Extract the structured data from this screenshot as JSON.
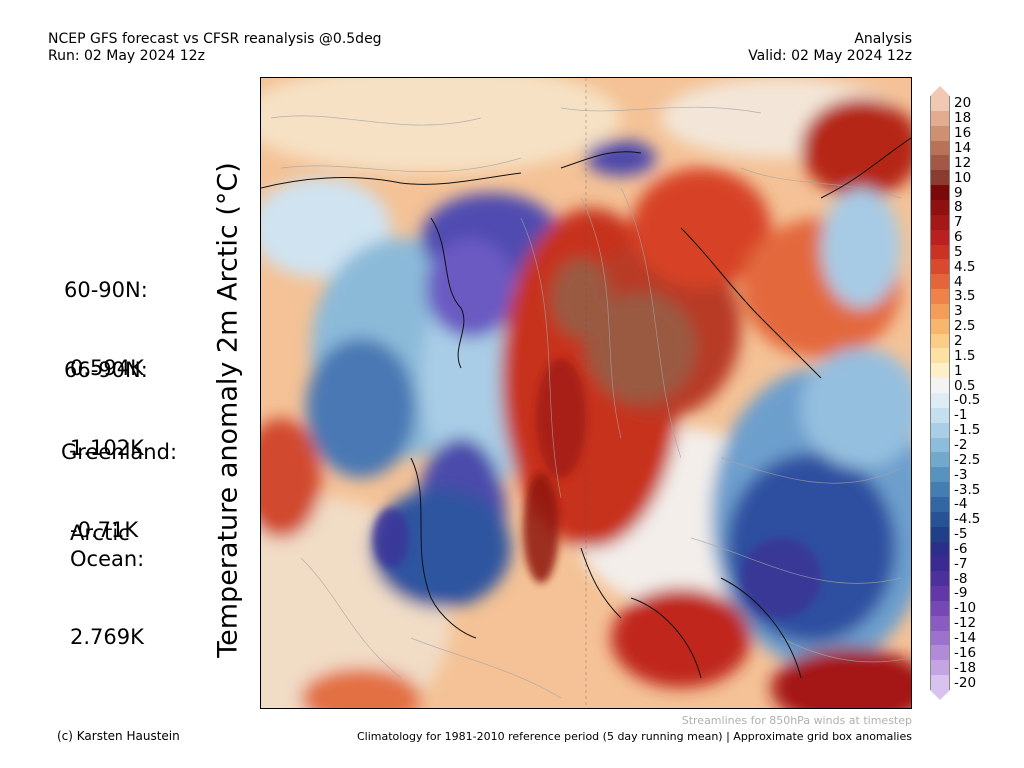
{
  "header": {
    "title_line1": "NCEP GFS forecast vs CFSR reanalysis @0.5deg",
    "title_line2": "Run: 02 May 2024 12z",
    "right_line1": "Analysis",
    "right_line2": "Valid: 02 May 2024 12z"
  },
  "side_title": "Temperature anomaly 2m Arctic (°C)",
  "stats": [
    {
      "label": "60-90N:",
      "value": "0.594K"
    },
    {
      "label": "66-90N:",
      "value": "1.102K"
    },
    {
      "label": "Greenland:",
      "value": "-0.71K"
    },
    {
      "label": "Arctic\nOcean:",
      "value": "2.769K"
    }
  ],
  "colorbar": {
    "labels": [
      "20",
      "18",
      "16",
      "14",
      "12",
      "10",
      "9",
      "8",
      "7",
      "6",
      "5",
      "4.5",
      "4",
      "3.5",
      "3",
      "2.5",
      "2",
      "1.5",
      "1",
      "0.5",
      "-0.5",
      "-1",
      "-1.5",
      "-2",
      "-2.5",
      "-3",
      "-3.5",
      "-4",
      "-4.5",
      "-5",
      "-6",
      "-7",
      "-8",
      "-9",
      "-10",
      "-12",
      "-14",
      "-16",
      "-18",
      "-20"
    ],
    "colors": [
      "#f0c8b4",
      "#e3ab90",
      "#cf8f73",
      "#b97258",
      "#a25845",
      "#8a3d2f",
      "#7a0a0a",
      "#8f1010",
      "#a41818",
      "#ba2020",
      "#cc3224",
      "#d9492e",
      "#e5653a",
      "#ee8248",
      "#f49d58",
      "#f8b66c",
      "#fbcd86",
      "#fde0a4",
      "#fdf0c8",
      "#f3f3f3",
      "#deecf6",
      "#c4e0ef",
      "#a8cfe6",
      "#8cbdda",
      "#71a9cd",
      "#5893c0",
      "#437db2",
      "#3267a4",
      "#275296",
      "#1f3f89",
      "#2b2f8a",
      "#3a2a92",
      "#4e2f9e",
      "#6238a9",
      "#7548b5",
      "#8a5cc2",
      "#9d72cd",
      "#b18ad8",
      "#c4a4e3",
      "#d8c2ee"
    ]
  },
  "footer": {
    "credit": "(c) Karsten Haustein",
    "streamlines_note": "Streamlines for 850hPa winds at timestep",
    "climatology_note": "Climatology for 1981-2010 reference period (5 day running mean) | Approximate grid box anomalies"
  }
}
